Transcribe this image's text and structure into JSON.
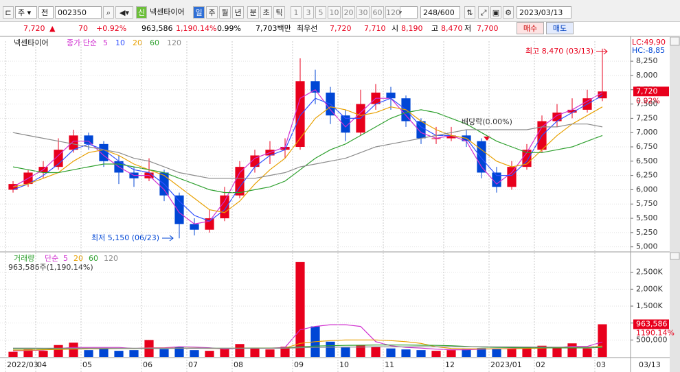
{
  "toolbar": {
    "period_type": "주",
    "mode": "전",
    "code": "002350",
    "badge": "신",
    "name": "넥센타이어",
    "intervals": [
      "일",
      "주",
      "월",
      "년",
      "분",
      "초",
      "틱"
    ],
    "numbers": [
      "1",
      "3",
      "5",
      "10",
      "20",
      "30",
      "60",
      "120"
    ],
    "count": "248",
    "max": "/600",
    "date": "2023/03/13"
  },
  "quote": {
    "price": "7,720",
    "arrow": "▲",
    "change": "70",
    "change_pct": "+0.92%",
    "volume": "963,586",
    "volume_pct": "1,190.14%",
    "turnover": "0.99%",
    "amount": "7,703백만",
    "best_label": "최우선",
    "ask": "7,720",
    "bid": "7,710",
    "open_label": "시",
    "open": "8,190",
    "high_label": "고",
    "high": "8,470",
    "low_label": "저",
    "low": "7,700",
    "buy": "매수",
    "sell": "매도"
  },
  "chart_data": [
    {
      "type": "candlestick",
      "title": "넥센타이어",
      "ma_label": "종가 단순",
      "open": [
        6000,
        6100,
        6300,
        6400,
        6700,
        6950,
        6800,
        6500,
        6300,
        6200,
        6300,
        5900,
        5400,
        5300,
        5500,
        5900,
        6400,
        6600,
        6700,
        6750,
        7900,
        7700,
        7300,
        7000,
        7500,
        7700,
        7600,
        7200,
        6900,
        6900,
        6950,
        6850,
        6300,
        6050,
        6400,
        6700,
        7200,
        7350,
        7400,
        7600
      ],
      "high": [
        6150,
        6350,
        6500,
        6900,
        7050,
        7000,
        6850,
        6600,
        6400,
        6550,
        6350,
        5950,
        5500,
        5650,
        6050,
        6500,
        6700,
        6850,
        6900,
        8300,
        8100,
        7800,
        7400,
        7750,
        7850,
        7800,
        7650,
        7250,
        7100,
        7100,
        7050,
        6900,
        6400,
        6500,
        6800,
        7300,
        7500,
        7600,
        7750,
        8470
      ],
      "low": [
        5950,
        6050,
        6200,
        6350,
        6650,
        6700,
        6400,
        6100,
        6050,
        6150,
        5800,
        5150,
        5200,
        5250,
        5450,
        5850,
        6300,
        6450,
        6550,
        6700,
        7500,
        7150,
        6850,
        6950,
        7400,
        7400,
        7100,
        6800,
        6800,
        6850,
        6750,
        6200,
        5950,
        6000,
        6350,
        6650,
        7100,
        7250,
        7350,
        7550
      ],
      "close": [
        6100,
        6300,
        6400,
        6700,
        6950,
        6800,
        6500,
        6300,
        6200,
        6300,
        5900,
        5400,
        5300,
        5500,
        5900,
        6400,
        6600,
        6700,
        6750,
        7900,
        7700,
        7300,
        7000,
        7500,
        7700,
        7600,
        7200,
        6900,
        6900,
        6950,
        6850,
        6300,
        6050,
        6400,
        6700,
        7200,
        7350,
        7400,
        7600,
        7720
      ],
      "up_color": "#e8001c",
      "down_color": "#0046d5",
      "series": [
        {
          "name": "5",
          "color": "#d030d0",
          "values": [
            6050,
            6200,
            6350,
            6600,
            6850,
            6850,
            6600,
            6400,
            6250,
            6250,
            6000,
            5600,
            5400,
            5450,
            5800,
            6300,
            6550,
            6650,
            6750,
            7600,
            7750,
            7400,
            7100,
            7350,
            7600,
            7600,
            7300,
            7000,
            6900,
            6950,
            6850,
            6400,
            6100,
            6300,
            6650,
            7100,
            7300,
            7400,
            7550,
            7700
          ]
        },
        {
          "name": "10",
          "color": "#3050ff",
          "values": [
            6000,
            6100,
            6250,
            6450,
            6700,
            6800,
            6700,
            6500,
            6350,
            6300,
            6100,
            5800,
            5550,
            5450,
            5650,
            6050,
            6400,
            6600,
            6700,
            7300,
            7600,
            7500,
            7250,
            7250,
            7500,
            7600,
            7400,
            7100,
            6950,
            6950,
            6900,
            6550,
            6250,
            6250,
            6500,
            6950,
            7200,
            7350,
            7500,
            7650
          ]
        },
        {
          "name": "20",
          "color": "#e8a000",
          "values": [
            6050,
            6100,
            6200,
            6300,
            6500,
            6650,
            6700,
            6600,
            6450,
            6350,
            6250,
            6050,
            5850,
            5650,
            5600,
            5800,
            6100,
            6350,
            6550,
            6900,
            7250,
            7450,
            7400,
            7300,
            7350,
            7450,
            7400,
            7200,
            7050,
            6950,
            6900,
            6700,
            6500,
            6400,
            6450,
            6700,
            6950,
            7150,
            7300,
            7450
          ]
        },
        {
          "name": "60",
          "color": "#2ea02e",
          "values": [
            6400,
            6350,
            6300,
            6300,
            6350,
            6400,
            6450,
            6450,
            6400,
            6350,
            6300,
            6200,
            6100,
            6000,
            5950,
            5950,
            6000,
            6050,
            6150,
            6350,
            6550,
            6700,
            6800,
            6950,
            7100,
            7250,
            7350,
            7400,
            7350,
            7250,
            7150,
            7000,
            6850,
            6750,
            6650,
            6650,
            6700,
            6750,
            6850,
            6950
          ]
        },
        {
          "name": "120",
          "color": "#8a8a8a",
          "values": [
            7000,
            6950,
            6900,
            6850,
            6800,
            6750,
            6700,
            6650,
            6550,
            6500,
            6400,
            6300,
            6250,
            6200,
            6200,
            6200,
            6200,
            6250,
            6300,
            6400,
            6450,
            6500,
            6550,
            6650,
            6750,
            6800,
            6850,
            6900,
            6950,
            7000,
            7050,
            7050,
            7050,
            7050,
            7050,
            7100,
            7100,
            7150,
            7150,
            7100
          ]
        }
      ],
      "ylim": [
        4900,
        8600
      ],
      "yticks": [
        {
          "value": 5000,
          "label": "5,000"
        },
        {
          "value": 5250,
          "label": "5,250"
        },
        {
          "value": 5500,
          "label": "5,500"
        },
        {
          "value": 5750,
          "label": "5,750"
        },
        {
          "value": 6000,
          "label": "6,000"
        },
        {
          "value": 6250,
          "label": "6,250"
        },
        {
          "value": 6500,
          "label": "6,500"
        },
        {
          "value": 6750,
          "label": "6,750"
        },
        {
          "value": 7000,
          "label": "7,000"
        },
        {
          "value": 7250,
          "label": "7,250"
        },
        {
          "value": 7500,
          "label": "7,500"
        },
        {
          "value": 7750,
          "label": "7,750"
        },
        {
          "value": 8000,
          "label": "8,000"
        },
        {
          "value": 8250,
          "label": "8,250"
        }
      ],
      "grid": true,
      "annotations": [
        {
          "text": "최고 8,470 (03/13)",
          "color": "#e8001c"
        },
        {
          "text": "최저 5,150 (06/23)",
          "color": "#0046d5"
        },
        {
          "text": "배당락(0.00%)",
          "color": "#333333"
        }
      ],
      "range_labels": [
        {
          "text": "LC:49,90",
          "color": "#e8001c"
        },
        {
          "text": "HC:-8,85",
          "color": "#0046d5"
        }
      ],
      "current": {
        "value": 7720,
        "label": "7,720",
        "change": "0.92%"
      }
    },
    {
      "type": "bar",
      "title": "거래량",
      "ma_label": "단순",
      "summary": "963,586주(1,190.14%)",
      "values": [
        150000,
        220000,
        180000,
        350000,
        420000,
        200000,
        250000,
        180000,
        200000,
        500000,
        230000,
        300000,
        200000,
        180000,
        260000,
        380000,
        250000,
        220000,
        300000,
        2800000,
        900000,
        450000,
        280000,
        350000,
        300000,
        250000,
        220000,
        200000,
        180000,
        200000,
        230000,
        260000,
        250000,
        240000,
        300000,
        330000,
        270000,
        400000,
        250000,
        963586
      ],
      "series": [
        {
          "name": "5",
          "color": "#d030d0",
          "values": [
            180000,
            190000,
            200000,
            250000,
            280000,
            280000,
            280000,
            280000,
            250000,
            270000,
            270000,
            300000,
            290000,
            270000,
            230000,
            260000,
            260000,
            260000,
            280000,
            800000,
            900000,
            950000,
            950000,
            900000,
            450000,
            330000,
            280000,
            260000,
            230000,
            210000,
            210000,
            230000,
            240000,
            250000,
            260000,
            280000,
            280000,
            310000,
            310000,
            440000
          ]
        },
        {
          "name": "20",
          "color": "#e8a000",
          "values": [
            200000,
            200000,
            210000,
            220000,
            230000,
            240000,
            240000,
            250000,
            250000,
            260000,
            260000,
            260000,
            260000,
            250000,
            250000,
            260000,
            260000,
            260000,
            260000,
            400000,
            450000,
            480000,
            500000,
            500000,
            500000,
            480000,
            450000,
            400000,
            300000,
            250000,
            240000,
            240000,
            240000,
            240000,
            250000,
            260000,
            270000,
            280000,
            290000,
            320000
          ]
        },
        {
          "name": "60",
          "color": "#2ea02e",
          "values": [
            240000,
            240000,
            240000,
            245000,
            250000,
            250000,
            250000,
            250000,
            250000,
            250000,
            250000,
            255000,
            255000,
            255000,
            255000,
            255000,
            260000,
            260000,
            260000,
            300000,
            320000,
            330000,
            340000,
            345000,
            350000,
            350000,
            350000,
            345000,
            340000,
            330000,
            310000,
            290000,
            280000,
            275000,
            270000,
            270000,
            265000,
            265000,
            265000,
            280000
          ]
        },
        {
          "name": "120",
          "color": "#8a8a8a",
          "values": [
            260000,
            260000,
            258000,
            258000,
            256000,
            256000,
            255000,
            255000,
            255000,
            254000,
            254000,
            254000,
            253000,
            253000,
            253000,
            253000,
            254000,
            254000,
            255000,
            270000,
            280000,
            285000,
            290000,
            292000,
            295000,
            297000,
            298000,
            300000,
            300000,
            300000,
            300000,
            300000,
            298000,
            296000,
            294000,
            292000,
            290000,
            290000,
            288000,
            295000
          ]
        }
      ],
      "ylim": [
        0,
        3000000
      ],
      "yticks": [
        {
          "value": 500000,
          "label": "500,000"
        },
        {
          "value": 1000000,
          "label": "1,000K"
        },
        {
          "value": 1500000,
          "label": "1,500K"
        },
        {
          "value": 2000000,
          "label": "2,000K"
        },
        {
          "value": 2500000,
          "label": "2,500K"
        }
      ],
      "grid": true,
      "categories": [
        "2022/03",
        null,
        "04",
        null,
        null,
        "05",
        null,
        null,
        null,
        "06",
        null,
        null,
        "07",
        null,
        null,
        "08",
        null,
        null,
        null,
        "09",
        null,
        null,
        "10",
        null,
        null,
        "11",
        null,
        null,
        null,
        "12",
        null,
        null,
        "2023/01",
        null,
        null,
        "02",
        null,
        null,
        null,
        "03"
      ],
      "cursor_date": "03/13",
      "current": {
        "value": 963586,
        "label": "963,586",
        "change": "1190.14%"
      }
    }
  ]
}
